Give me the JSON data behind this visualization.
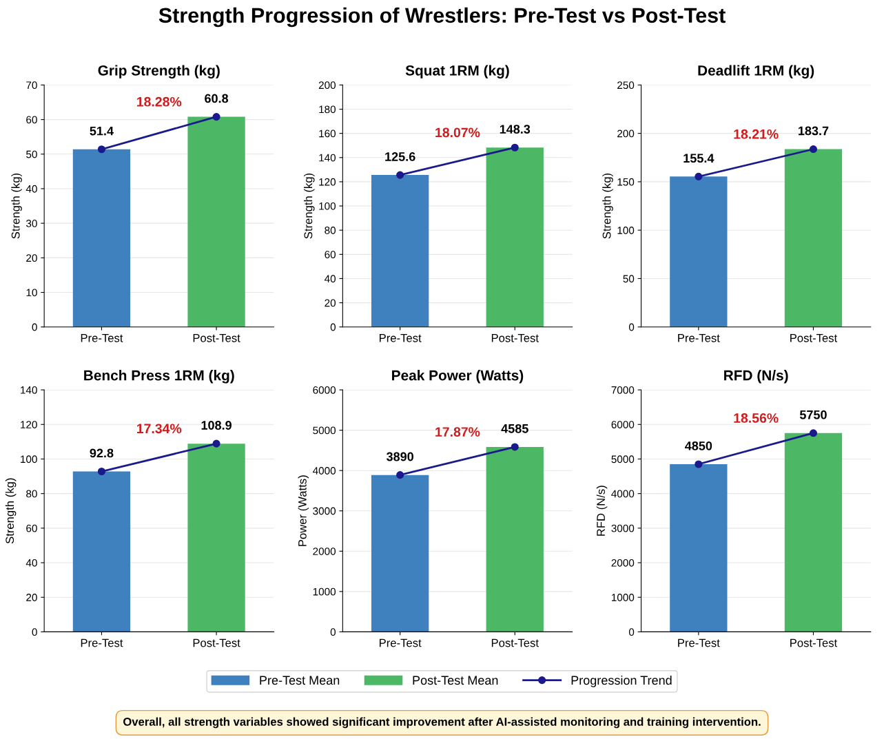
{
  "chart_data": [
    {
      "type": "bar",
      "title": "Grip Strength (kg)",
      "ylabel": "Strength (kg)",
      "categories": [
        "Pre-Test",
        "Post-Test"
      ],
      "ylim": [
        0,
        70
      ],
      "yticks": [
        0,
        10,
        20,
        30,
        40,
        50,
        60,
        70
      ],
      "grid": "y",
      "data_labels": true,
      "legend": "bottom",
      "annotations": [
        "18.28%",
        "Strength Progression of Wrestlers: Pre-Test vs Post-Test",
        "Overall, all strength variables showed significant improvement after AI-assisted monitoring and training intervention."
      ],
      "series": [
        {
          "name": "Pre-Test Mean",
          "color": "#3f80bf",
          "values": [
            51.4,
            null
          ]
        },
        {
          "name": "Post-Test Mean",
          "color": "#4cb866",
          "values": [
            null,
            60.8
          ]
        },
        {
          "name": "Progression Trend",
          "type": "line",
          "color": "#1a1a8c",
          "marker": "circle",
          "values": [
            51.4,
            60.8
          ],
          "value_labels": [
            null,
            null
          ]
        }
      ]
    },
    {
      "type": "bar",
      "title": "Squat 1RM (kg)",
      "ylabel": "Strength (kg)",
      "categories": [
        "Pre-Test",
        "Post-Test"
      ],
      "ylim": [
        0,
        200
      ],
      "yticks": [
        0,
        20,
        40,
        60,
        80,
        100,
        120,
        140,
        160,
        180,
        200
      ],
      "grid": "y",
      "data_labels": true,
      "annotations": [
        "18.07%"
      ],
      "series": [
        {
          "color": "#3f80bf",
          "values": [
            125.6,
            null
          ]
        },
        {
          "color": "#4cb866",
          "values": [
            null,
            148.3
          ]
        },
        {
          "type": "line",
          "color": "#1a1a8c",
          "marker": "circle",
          "values": [
            125.6,
            148.3
          ],
          "value_labels": [
            null,
            null
          ]
        }
      ]
    },
    {
      "type": "bar",
      "title": "Deadlift 1RM (kg)",
      "ylabel": "Strength (kg)",
      "categories": [
        "Pre-Test",
        "Post-Test"
      ],
      "ylim": [
        0,
        250
      ],
      "yticks": [
        0,
        50,
        100,
        150,
        200,
        250
      ],
      "grid": "y",
      "data_labels": true,
      "annotations": [
        "18.21%"
      ],
      "series": [
        {
          "color": "#3f80bf",
          "values": [
            155.4,
            null
          ]
        },
        {
          "color": "#4cb866",
          "values": [
            null,
            183.7
          ]
        },
        {
          "type": "line",
          "color": "#1a1a8c",
          "marker": "circle",
          "values": [
            155.4,
            183.7
          ],
          "value_labels": [
            null,
            null
          ]
        }
      ]
    },
    {
      "type": "bar",
      "title": "Bench Press 1RM (kg)",
      "ylabel": "Strength (kg)",
      "categories": [
        "Pre-Test",
        "Post-Test"
      ],
      "ylim": [
        0,
        140
      ],
      "yticks": [
        0,
        20,
        40,
        60,
        80,
        100,
        120,
        140
      ],
      "grid": "y",
      "data_labels": true,
      "annotations": [
        "17.34%"
      ],
      "series": [
        {
          "color": "#3f80bf",
          "values": [
            92.8,
            null
          ]
        },
        {
          "color": "#4cb866",
          "values": [
            null,
            108.9
          ]
        },
        {
          "type": "line",
          "color": "#1a1a8c",
          "marker": "circle",
          "values": [
            92.8,
            108.9
          ],
          "value_labels": [
            null,
            null
          ]
        }
      ]
    },
    {
      "type": "bar",
      "title": "Peak Power (Watts)",
      "ylabel": "Power (Watts)",
      "categories": [
        "Pre-Test",
        "Post-Test"
      ],
      "ylim": [
        0,
        6000
      ],
      "yticks": [
        0,
        1000,
        2000,
        3000,
        4000,
        5000,
        6000
      ],
      "grid": "y",
      "data_labels": true,
      "annotations": [
        "17.87%"
      ],
      "series": [
        {
          "color": "#3f80bf",
          "values": [
            3890,
            null
          ]
        },
        {
          "color": "#4cb866",
          "values": [
            null,
            4585
          ]
        },
        {
          "type": "line",
          "color": "#1a1a8c",
          "marker": "circle",
          "values": [
            3890,
            4585
          ],
          "value_labels": [
            null,
            null
          ]
        }
      ]
    },
    {
      "type": "bar",
      "title": "RFD (N/s)",
      "ylabel": "RFD (N/s)",
      "categories": [
        "Pre-Test",
        "Post-Test"
      ],
      "ylim": [
        0,
        7000
      ],
      "yticks": [
        0,
        1000,
        2000,
        3000,
        4000,
        5000,
        6000,
        7000
      ],
      "grid": "y",
      "data_labels": true,
      "annotations": [
        "18.56%"
      ],
      "series": [
        {
          "color": "#3f80bf",
          "values": [
            4850,
            null
          ]
        },
        {
          "color": "#4cb866",
          "values": [
            null,
            5750
          ]
        },
        {
          "type": "line",
          "color": "#1a1a8c",
          "marker": "circle",
          "values": [
            4850,
            5750
          ],
          "value_labels": [
            null,
            null
          ]
        }
      ]
    }
  ]
}
